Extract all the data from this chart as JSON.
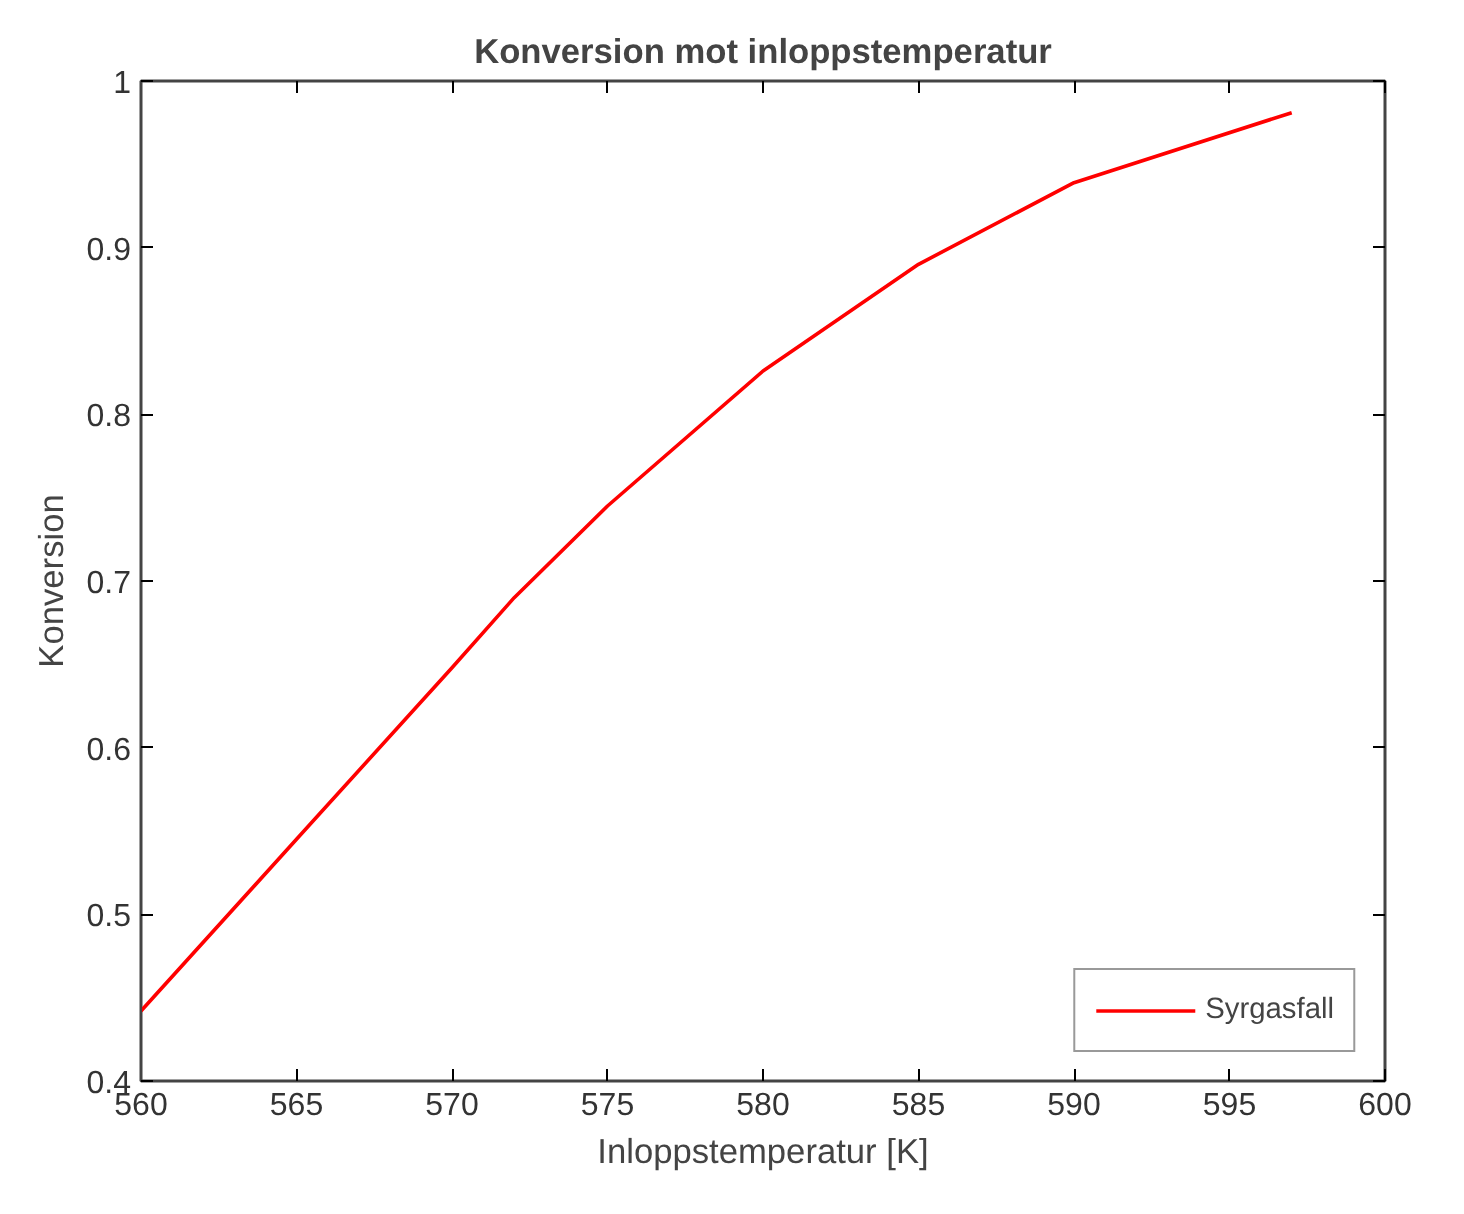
{
  "chart_data": {
    "type": "line",
    "title": "Konversion mot inloppstemperatur",
    "xlabel": "Inloppstemperatur [K]",
    "ylabel": "Konversion",
    "x": [
      560,
      565,
      570,
      572,
      575,
      580,
      585,
      590,
      597
    ],
    "series": [
      {
        "name": "Syrgasfall",
        "color": "#ff0000",
        "values": [
          0.442,
          0.545,
          0.648,
          0.69,
          0.745,
          0.826,
          0.89,
          0.939,
          0.981
        ]
      }
    ],
    "xlim": [
      560,
      600
    ],
    "xticks": [
      560,
      565,
      570,
      575,
      580,
      585,
      590,
      595,
      600
    ],
    "ylim": [
      0.4,
      1
    ],
    "yticks": [
      0.4,
      0.5,
      0.6,
      0.7,
      0.8,
      0.9,
      {
        "value": 1,
        "label": "1"
      }
    ],
    "grid": false,
    "legend": "bottom right",
    "line_style": "solid",
    "marker": "none"
  }
}
